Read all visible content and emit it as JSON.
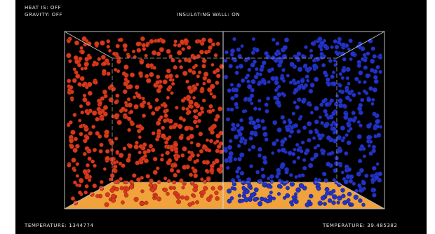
{
  "status": {
    "heat": "HEAT IS:  OFF",
    "gravity": "GRAVITY:  OFF",
    "wall": "INSULATING WALL:  ON"
  },
  "footer": {
    "left_temperature": "TEMPERATURE:   1344774",
    "right_temperature": "TEMPERATURE:   39.485382"
  }
}
